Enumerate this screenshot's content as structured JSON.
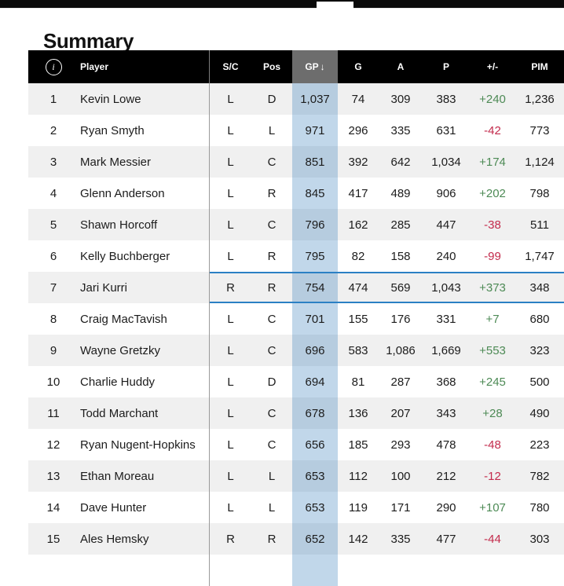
{
  "page": {
    "title": "Summary"
  },
  "scrollbar": {
    "thumb": "horizontal-scrollbar-thumb"
  },
  "colors": {
    "positive": "#4d8a55",
    "negative": "#c32b4c",
    "highlight": "#2b80c4",
    "gp_tint": "rgba(33,113,181,0.28)",
    "sorted_header_bg": "#6d6d6d",
    "header_bg": "#000000",
    "row_alt_bg": "#f0f0f0"
  },
  "table": {
    "sort_arrow": "↓",
    "sorted_column": "GP",
    "highlighted_rank": 7,
    "columns": [
      {
        "key": "info",
        "label": "",
        "icon": "info-icon"
      },
      {
        "key": "player",
        "label": "Player"
      },
      {
        "key": "sc",
        "label": "S/C"
      },
      {
        "key": "pos",
        "label": "Pos"
      },
      {
        "key": "gp",
        "label": "GP",
        "sorted": true
      },
      {
        "key": "g",
        "label": "G"
      },
      {
        "key": "a",
        "label": "A"
      },
      {
        "key": "p",
        "label": "P"
      },
      {
        "key": "plus_minus",
        "label": "+/-"
      },
      {
        "key": "pim",
        "label": "PIM"
      }
    ],
    "rows": [
      {
        "rank": "1",
        "player": "Kevin Lowe",
        "sc": "L",
        "pos": "D",
        "gp": "1,037",
        "g": "74",
        "a": "309",
        "p": "383",
        "plus_minus": "+240",
        "pim": "1,236"
      },
      {
        "rank": "2",
        "player": "Ryan Smyth",
        "sc": "L",
        "pos": "L",
        "gp": "971",
        "g": "296",
        "a": "335",
        "p": "631",
        "plus_minus": "-42",
        "pim": "773"
      },
      {
        "rank": "3",
        "player": "Mark Messier",
        "sc": "L",
        "pos": "C",
        "gp": "851",
        "g": "392",
        "a": "642",
        "p": "1,034",
        "plus_minus": "+174",
        "pim": "1,124"
      },
      {
        "rank": "4",
        "player": "Glenn Anderson",
        "sc": "L",
        "pos": "R",
        "gp": "845",
        "g": "417",
        "a": "489",
        "p": "906",
        "plus_minus": "+202",
        "pim": "798"
      },
      {
        "rank": "5",
        "player": "Shawn Horcoff",
        "sc": "L",
        "pos": "C",
        "gp": "796",
        "g": "162",
        "a": "285",
        "p": "447",
        "plus_minus": "-38",
        "pim": "511"
      },
      {
        "rank": "6",
        "player": "Kelly Buchberger",
        "sc": "L",
        "pos": "R",
        "gp": "795",
        "g": "82",
        "a": "158",
        "p": "240",
        "plus_minus": "-99",
        "pim": "1,747"
      },
      {
        "rank": "7",
        "player": "Jari Kurri",
        "sc": "R",
        "pos": "R",
        "gp": "754",
        "g": "474",
        "a": "569",
        "p": "1,043",
        "plus_minus": "+373",
        "pim": "348"
      },
      {
        "rank": "8",
        "player": "Craig MacTavish",
        "sc": "L",
        "pos": "C",
        "gp": "701",
        "g": "155",
        "a": "176",
        "p": "331",
        "plus_minus": "+7",
        "pim": "680"
      },
      {
        "rank": "9",
        "player": "Wayne Gretzky",
        "sc": "L",
        "pos": "C",
        "gp": "696",
        "g": "583",
        "a": "1,086",
        "p": "1,669",
        "plus_minus": "+553",
        "pim": "323"
      },
      {
        "rank": "10",
        "player": "Charlie Huddy",
        "sc": "L",
        "pos": "D",
        "gp": "694",
        "g": "81",
        "a": "287",
        "p": "368",
        "plus_minus": "+245",
        "pim": "500"
      },
      {
        "rank": "11",
        "player": "Todd Marchant",
        "sc": "L",
        "pos": "C",
        "gp": "678",
        "g": "136",
        "a": "207",
        "p": "343",
        "plus_minus": "+28",
        "pim": "490"
      },
      {
        "rank": "12",
        "player": "Ryan Nugent-Hopkins",
        "sc": "L",
        "pos": "C",
        "gp": "656",
        "g": "185",
        "a": "293",
        "p": "478",
        "plus_minus": "-48",
        "pim": "223"
      },
      {
        "rank": "13",
        "player": "Ethan Moreau",
        "sc": "L",
        "pos": "L",
        "gp": "653",
        "g": "112",
        "a": "100",
        "p": "212",
        "plus_minus": "-12",
        "pim": "782"
      },
      {
        "rank": "14",
        "player": "Dave Hunter",
        "sc": "L",
        "pos": "L",
        "gp": "653",
        "g": "119",
        "a": "171",
        "p": "290",
        "plus_minus": "+107",
        "pim": "780"
      },
      {
        "rank": "15",
        "player": "Ales Hemsky",
        "sc": "R",
        "pos": "R",
        "gp": "652",
        "g": "142",
        "a": "335",
        "p": "477",
        "plus_minus": "-44",
        "pim": "303"
      }
    ]
  }
}
